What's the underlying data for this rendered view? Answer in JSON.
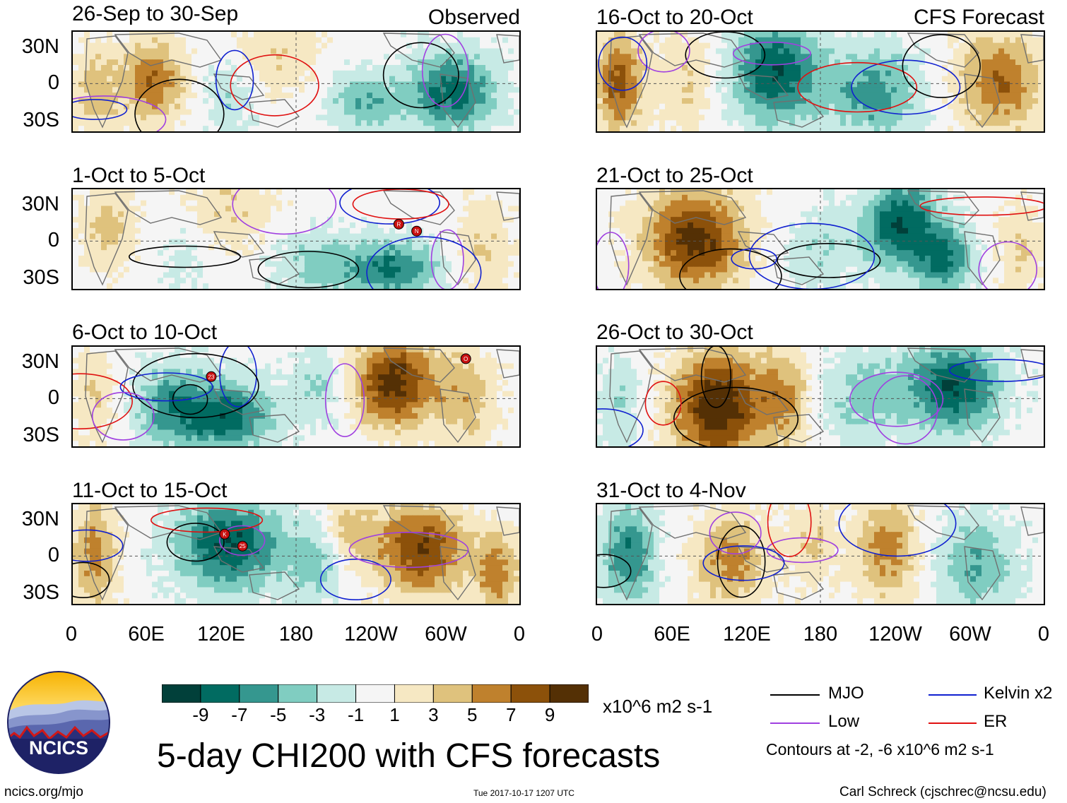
{
  "chart_data": {
    "type": "heatmap",
    "title": "5-day CHI200 with CFS forecasts",
    "variable": "CHI200",
    "units": "x10^6 m2 s-1",
    "colorbar": {
      "boundaries": [
        -11,
        -9,
        -7,
        -5,
        -3,
        -1,
        1,
        3,
        5,
        7,
        9,
        11
      ],
      "tick_labels": [
        "-9",
        "-7",
        "-5",
        "-3",
        "-1",
        "1",
        "3",
        "5",
        "7",
        "9"
      ],
      "colors": [
        "#01403a",
        "#016b61",
        "#35978f",
        "#80cdc1",
        "#c7eae5",
        "#f5f5f5",
        "#f6e8c3",
        "#dfc27d",
        "#bf812d",
        "#8c510a",
        "#543005"
      ]
    },
    "lat_ticks": [
      "30N",
      "0",
      "30S"
    ],
    "lon_ticks": [
      "0",
      "60E",
      "120E",
      "180",
      "120W",
      "60W",
      "0"
    ],
    "contour_note": "Contours at -2, -6 x10^6 m2 s-1",
    "legend": [
      {
        "label": "MJO",
        "color": "#000000"
      },
      {
        "label": "Kelvin x2",
        "color": "#1020d0"
      },
      {
        "label": "Low",
        "color": "#a040e0"
      },
      {
        "label": "ER",
        "color": "#e01010"
      }
    ],
    "columns": [
      {
        "label": "Observed",
        "panels": [
          "26-Sep to 30-Sep",
          "1-Oct to 5-Oct",
          "6-Oct to 10-Oct",
          "11-Oct to 15-Oct"
        ]
      },
      {
        "label": "CFS Forecast",
        "panels": [
          "16-Oct to 20-Oct",
          "21-Oct to 25-Oct",
          "26-Oct to 30-Oct",
          "31-Oct to 4-Nov"
        ]
      }
    ],
    "storm_markers": [
      {
        "panel": "1-Oct to 5-Oct",
        "labels": [
          "R",
          "N"
        ]
      },
      {
        "panel": "6-Oct to 10-Oct",
        "labels": [
          "23",
          "O"
        ]
      },
      {
        "panel": "11-Oct to 15-Oct",
        "labels": [
          "K",
          "25"
        ]
      }
    ]
  },
  "logo": {
    "text": "NCICS"
  },
  "footer": {
    "url": "ncics.org/mjo",
    "timestamp": "Tue 2017-10-17 1207 UTC",
    "credit": "Carl Schreck (cjschrec@ncsu.edu)"
  }
}
